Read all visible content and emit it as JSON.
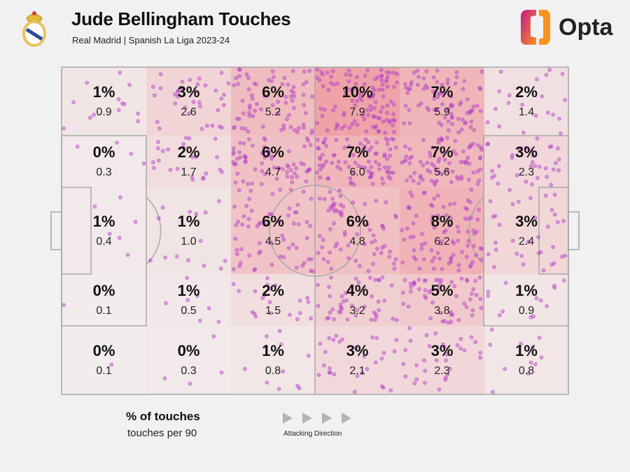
{
  "header": {
    "title": "Jude Bellingham Touches",
    "subtitle": "Real Madrid | Spanish La Liga 2023-24",
    "brand": "Opta"
  },
  "legend": {
    "main": "% of touches",
    "sub": "touches per 90",
    "direction": "Attacking Direction"
  },
  "colors": {
    "background": "#f1f1f1",
    "heat_low": "#f2eded",
    "heat_high": "#eea3a8",
    "dot": "#b43cc8",
    "line": "#a8a8a8"
  },
  "chart_data": {
    "type": "heatmap",
    "title": "Jude Bellingham Touches",
    "subtitle": "Real Madrid | Spanish La Liga 2023-24",
    "grid": {
      "rows": 5,
      "cols": 6
    },
    "attacking_direction": "left-to-right",
    "pct_of_touches": [
      [
        "1%",
        "3%",
        "6%",
        "10%",
        "7%",
        "2%"
      ],
      [
        "0%",
        "2%",
        "6%",
        "7%",
        "7%",
        "3%"
      ],
      [
        "1%",
        "1%",
        "6%",
        "6%",
        "8%",
        "3%"
      ],
      [
        "0%",
        "1%",
        "2%",
        "4%",
        "5%",
        "1%"
      ],
      [
        "0%",
        "0%",
        "1%",
        "3%",
        "3%",
        "1%"
      ]
    ],
    "touches_per_90": [
      [
        "0.9",
        "2.6",
        "5.2",
        "7.9",
        "5.9",
        "1.4"
      ],
      [
        "0.3",
        "1.7",
        "4.7",
        "6.0",
        "5.6",
        "2.3"
      ],
      [
        "0.4",
        "1.0",
        "4.5",
        "4.8",
        "6.2",
        "2.4"
      ],
      [
        "0.1",
        "0.5",
        "1.5",
        "3.2",
        "3.8",
        "0.9"
      ],
      [
        "0.1",
        "0.3",
        "0.8",
        "2.1",
        "2.3",
        "0.8"
      ]
    ]
  }
}
